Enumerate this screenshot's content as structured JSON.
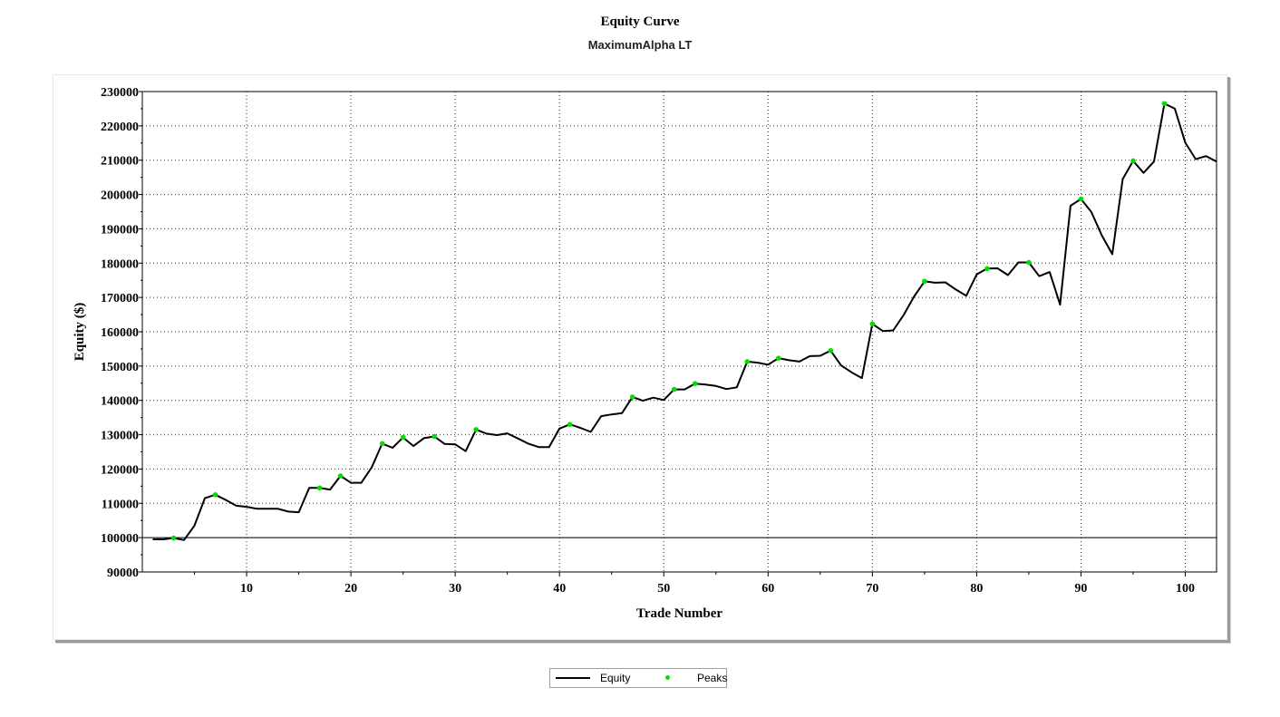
{
  "chart_data": {
    "type": "line",
    "title": "Equity Curve",
    "subtitle": "MaximumAlpha LT",
    "xlabel": "Trade Number",
    "ylabel": "Equity ($)",
    "xlim": [
      0,
      103
    ],
    "ylim": [
      90000,
      230000
    ],
    "x_ticks": [
      10,
      20,
      30,
      40,
      50,
      60,
      70,
      80,
      90,
      100
    ],
    "y_ticks": [
      90000,
      100000,
      110000,
      120000,
      130000,
      140000,
      150000,
      160000,
      170000,
      180000,
      190000,
      200000,
      210000,
      220000,
      230000
    ],
    "grid": true,
    "legend": "bottom-center",
    "series": [
      {
        "name": "Equity",
        "color": "#000000",
        "style": "line",
        "x": [
          1,
          2,
          3,
          4,
          5,
          6,
          7,
          8,
          9,
          10,
          11,
          12,
          13,
          14,
          15,
          16,
          17,
          18,
          19,
          20,
          21,
          22,
          23,
          24,
          25,
          26,
          27,
          28,
          29,
          30,
          31,
          32,
          33,
          34,
          35,
          36,
          37,
          38,
          39,
          40,
          41,
          42,
          43,
          44,
          45,
          46,
          47,
          48,
          49,
          50,
          51,
          52,
          53,
          54,
          55,
          56,
          57,
          58,
          59,
          60,
          61,
          62,
          63,
          64,
          65,
          66,
          67,
          68,
          69,
          70,
          71,
          72,
          73,
          74,
          75,
          76,
          77,
          78,
          79,
          80,
          81,
          82,
          83,
          84,
          85,
          86,
          87,
          88,
          89,
          90,
          91,
          92,
          93,
          94,
          95,
          96,
          97,
          98,
          99,
          100,
          101,
          102,
          103
        ],
        "values": [
          99500,
          99500,
          99900,
          99300,
          103500,
          111500,
          112500,
          111000,
          109300,
          109000,
          108400,
          108400,
          108400,
          107600,
          107400,
          114500,
          114500,
          114000,
          118000,
          116000,
          116000,
          120500,
          127400,
          126200,
          129200,
          126700,
          129000,
          129500,
          127300,
          127200,
          125200,
          131500,
          130300,
          129900,
          130400,
          128900,
          127400,
          126400,
          126400,
          131800,
          133000,
          132000,
          130800,
          135400,
          135900,
          136300,
          141000,
          139900,
          140800,
          140100,
          143200,
          143200,
          144900,
          144600,
          144200,
          143300,
          143800,
          151300,
          151000,
          150400,
          152300,
          151700,
          151300,
          152900,
          153000,
          154500,
          150200,
          148200,
          146500,
          162300,
          160200,
          160400,
          164900,
          170300,
          174700,
          174300,
          174400,
          172300,
          170500,
          176700,
          178400,
          178500,
          176500,
          180200,
          180200,
          176200,
          177400,
          167900,
          196700,
          198700,
          194900,
          188100,
          182600,
          204500,
          209800,
          206300,
          209600,
          226500,
          225000,
          215100,
          210300,
          211200,
          209600
        ]
      },
      {
        "name": "Peaks",
        "color": "#00e000",
        "style": "points",
        "x": [
          3,
          7,
          17,
          19,
          23,
          25,
          28,
          32,
          41,
          47,
          51,
          53,
          58,
          61,
          66,
          70,
          75,
          81,
          85,
          90,
          95,
          98
        ],
        "values": [
          99900,
          112500,
          114500,
          118000,
          127400,
          129200,
          129500,
          131500,
          133000,
          141000,
          143200,
          144900,
          151300,
          152300,
          154500,
          162300,
          174700,
          178400,
          180200,
          198700,
          209800,
          226500
        ]
      }
    ]
  }
}
